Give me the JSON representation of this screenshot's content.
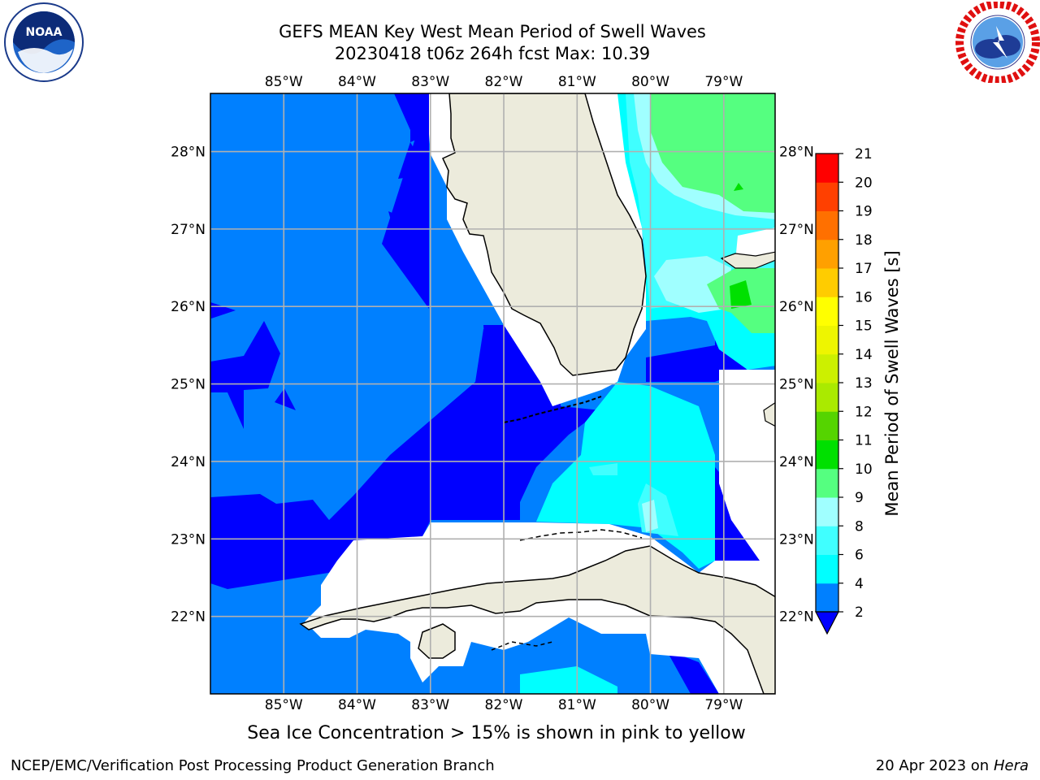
{
  "header": {
    "title_line1": "GEFS MEAN Key West Mean Period of Swell Waves",
    "title_line2": "20230418 t06z 264h fcst   Max: 10.39"
  },
  "logos": {
    "left": {
      "icon": "noaa-logo",
      "text": "NOAA",
      "ring_text": "NATIONAL OCEANIC AND ATMOSPHERIC ADMINISTRATION · U.S. DEPARTMENT OF COMMERCE"
    },
    "right": {
      "icon": "nws-logo",
      "ring_text": "NATIONAL WEATHER SERVICE"
    }
  },
  "map": {
    "lon_labels": [
      "85°W",
      "84°W",
      "83°W",
      "82°W",
      "81°W",
      "80°W",
      "79°W"
    ],
    "lat_labels": [
      "28°N",
      "27°N",
      "26°N",
      "25°N",
      "24°N",
      "23°N",
      "22°N"
    ],
    "lon_range": [
      -86.0,
      -78.3
    ],
    "lat_range": [
      21.0,
      28.75
    ],
    "grid": true,
    "colors": {
      "c2": "#0000ff",
      "c2_4": "#0080ff",
      "c4_6": "#00ffff",
      "c6_8": "#40ffff",
      "c8_9": "#a0ffff",
      "c9_10": "#55ff80",
      "c10_11": "#00e000",
      "land": "#ecebdc",
      "masked": "#ffffff",
      "grid": "#b0b0b0"
    }
  },
  "colorbar": {
    "label": "Mean Period of Swell Waves [s]",
    "ticks": [
      "2",
      "4",
      "6",
      "8",
      "9",
      "10",
      "11",
      "12",
      "13",
      "14",
      "15",
      "16",
      "17",
      "18",
      "19",
      "20",
      "21"
    ],
    "bins": [
      {
        "from": 2,
        "to": 4,
        "color": "#0080ff"
      },
      {
        "from": 4,
        "to": 6,
        "color": "#00ffff"
      },
      {
        "from": 6,
        "to": 8,
        "color": "#40ffff"
      },
      {
        "from": 8,
        "to": 9,
        "color": "#a0ffff"
      },
      {
        "from": 9,
        "to": 10,
        "color": "#55ff80"
      },
      {
        "from": 10,
        "to": 11,
        "color": "#00e000"
      },
      {
        "from": 11,
        "to": 12,
        "color": "#55d400"
      },
      {
        "from": 12,
        "to": 13,
        "color": "#aaea00"
      },
      {
        "from": 13,
        "to": 14,
        "color": "#ccf000"
      },
      {
        "from": 14,
        "to": 15,
        "color": "#eef500"
      },
      {
        "from": 15,
        "to": 16,
        "color": "#ffff00"
      },
      {
        "from": 16,
        "to": 17,
        "color": "#ffcc00"
      },
      {
        "from": 17,
        "to": 18,
        "color": "#ffa000"
      },
      {
        "from": 18,
        "to": 19,
        "color": "#ff7000"
      },
      {
        "from": 19,
        "to": 20,
        "color": "#ff4000"
      },
      {
        "from": 20,
        "to": 21,
        "color": "#ff0000"
      }
    ],
    "under_color": "#0000ff"
  },
  "subcaption": "Sea Ice Concentration > 15% is shown in pink to yellow",
  "footer": {
    "left": "NCEP/EMC/Verification Post Processing Product Generation Branch",
    "right_prefix": "20 Apr 2023 on ",
    "right_host": "Hera"
  }
}
